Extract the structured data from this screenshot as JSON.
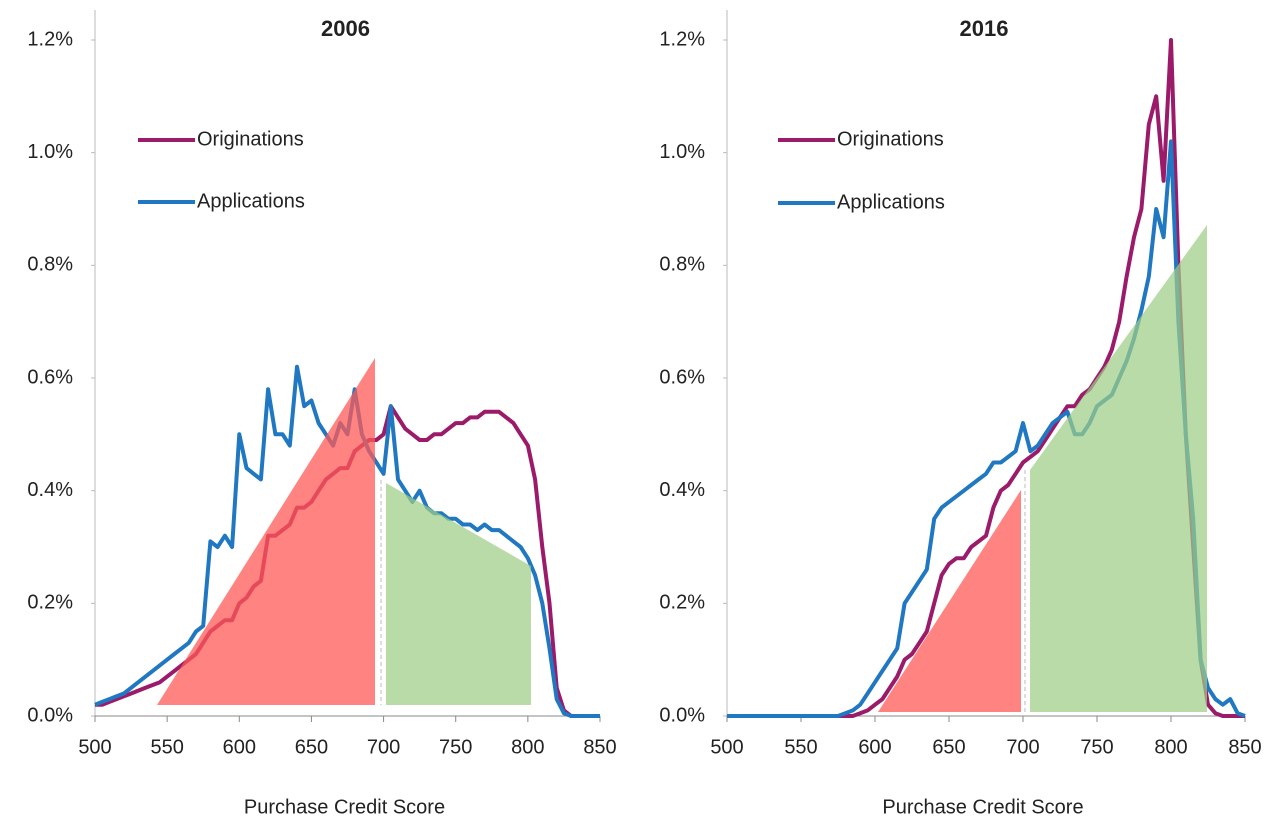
{
  "chart_data": [
    {
      "type": "line",
      "title": "2006",
      "x_label": "Purchase Credit Score",
      "x": [
        500,
        505,
        510,
        515,
        520,
        525,
        530,
        535,
        540,
        545,
        550,
        555,
        560,
        565,
        570,
        575,
        580,
        585,
        590,
        595,
        600,
        605,
        610,
        615,
        620,
        625,
        630,
        635,
        640,
        645,
        650,
        655,
        660,
        665,
        670,
        675,
        680,
        685,
        690,
        695,
        700,
        705,
        710,
        715,
        720,
        725,
        730,
        735,
        740,
        745,
        750,
        755,
        760,
        765,
        770,
        775,
        780,
        785,
        790,
        795,
        800,
        805,
        810,
        815,
        820,
        825,
        830,
        835,
        840,
        845,
        850
      ],
      "series": [
        {
          "name": "Originations",
          "color": "#9b1b6a",
          "values": [
            0.02,
            0.02,
            0.025,
            0.03,
            0.035,
            0.04,
            0.045,
            0.05,
            0.055,
            0.06,
            0.07,
            0.08,
            0.09,
            0.1,
            0.11,
            0.13,
            0.15,
            0.16,
            0.17,
            0.17,
            0.2,
            0.21,
            0.23,
            0.24,
            0.32,
            0.32,
            0.33,
            0.34,
            0.37,
            0.37,
            0.38,
            0.4,
            0.42,
            0.43,
            0.44,
            0.44,
            0.47,
            0.48,
            0.49,
            0.49,
            0.5,
            0.55,
            0.53,
            0.51,
            0.5,
            0.49,
            0.49,
            0.5,
            0.5,
            0.51,
            0.52,
            0.52,
            0.53,
            0.53,
            0.54,
            0.54,
            0.54,
            0.53,
            0.52,
            0.5,
            0.48,
            0.42,
            0.3,
            0.2,
            0.05,
            0.01,
            0,
            0,
            0,
            0,
            0
          ]
        },
        {
          "name": "Applications",
          "color": "#1f78c1",
          "values": [
            0.02,
            0.025,
            0.03,
            0.035,
            0.04,
            0.05,
            0.06,
            0.07,
            0.08,
            0.09,
            0.1,
            0.11,
            0.12,
            0.13,
            0.15,
            0.16,
            0.31,
            0.3,
            0.32,
            0.3,
            0.5,
            0.44,
            0.43,
            0.42,
            0.58,
            0.5,
            0.5,
            0.48,
            0.62,
            0.55,
            0.56,
            0.52,
            0.5,
            0.48,
            0.52,
            0.5,
            0.58,
            0.5,
            0.47,
            0.45,
            0.43,
            0.55,
            0.42,
            0.4,
            0.38,
            0.4,
            0.37,
            0.36,
            0.36,
            0.35,
            0.35,
            0.34,
            0.34,
            0.33,
            0.34,
            0.33,
            0.33,
            0.32,
            0.31,
            0.3,
            0.28,
            0.25,
            0.2,
            0.12,
            0.03,
            0.005,
            0,
            0,
            0,
            0,
            0
          ]
        }
      ],
      "xlim": [
        500,
        850
      ],
      "xticks": [
        500,
        550,
        600,
        650,
        700,
        750,
        800,
        850
      ],
      "ylim": [
        0,
        1.2
      ],
      "yticks": [
        {
          "value": 0,
          "label": "0.0%"
        },
        {
          "value": 0.2,
          "label": "0.2%"
        },
        {
          "value": 0.4,
          "label": "0.4%"
        },
        {
          "value": 0.6,
          "label": "0.6%"
        },
        {
          "value": 0.8,
          "label": "0.8%"
        },
        {
          "value": 1.0,
          "label": "1.0%"
        },
        {
          "value": 1.2,
          "label": "1.2%"
        }
      ]
    },
    {
      "type": "line",
      "title": "2016",
      "x_label": "Purchase Credit Score",
      "x": [
        500,
        505,
        510,
        515,
        520,
        525,
        530,
        535,
        540,
        545,
        550,
        555,
        560,
        565,
        570,
        575,
        580,
        585,
        590,
        595,
        600,
        605,
        610,
        615,
        620,
        625,
        630,
        635,
        640,
        645,
        650,
        655,
        660,
        665,
        670,
        675,
        680,
        685,
        690,
        695,
        700,
        705,
        710,
        715,
        720,
        725,
        730,
        735,
        740,
        745,
        750,
        755,
        760,
        765,
        770,
        775,
        780,
        785,
        790,
        795,
        800,
        805,
        810,
        815,
        820,
        825,
        830,
        835,
        840,
        845,
        850
      ],
      "series": [
        {
          "name": "Originations",
          "color": "#9b1b6a",
          "values": [
            0,
            0,
            0,
            0,
            0,
            0,
            0,
            0,
            0,
            0,
            0,
            0,
            0,
            0,
            0,
            0,
            0,
            0,
            0.005,
            0.01,
            0.02,
            0.03,
            0.05,
            0.07,
            0.1,
            0.11,
            0.13,
            0.15,
            0.2,
            0.25,
            0.27,
            0.28,
            0.28,
            0.3,
            0.31,
            0.32,
            0.37,
            0.4,
            0.41,
            0.43,
            0.45,
            0.46,
            0.47,
            0.49,
            0.51,
            0.53,
            0.55,
            0.55,
            0.57,
            0.58,
            0.6,
            0.62,
            0.65,
            0.7,
            0.78,
            0.85,
            0.9,
            1.05,
            1.1,
            0.95,
            1.2,
            0.8,
            0.5,
            0.3,
            0.1,
            0.02,
            0.005,
            0,
            0,
            0,
            0
          ]
        },
        {
          "name": "Applications",
          "color": "#1f78c1",
          "values": [
            0,
            0,
            0,
            0,
            0,
            0,
            0,
            0,
            0,
            0,
            0,
            0,
            0,
            0,
            0,
            0,
            0.005,
            0.01,
            0.02,
            0.04,
            0.06,
            0.08,
            0.1,
            0.12,
            0.2,
            0.22,
            0.24,
            0.26,
            0.35,
            0.37,
            0.38,
            0.39,
            0.4,
            0.41,
            0.42,
            0.43,
            0.45,
            0.45,
            0.46,
            0.47,
            0.52,
            0.47,
            0.48,
            0.5,
            0.52,
            0.53,
            0.54,
            0.5,
            0.5,
            0.52,
            0.55,
            0.56,
            0.57,
            0.6,
            0.63,
            0.67,
            0.72,
            0.78,
            0.9,
            0.85,
            1.02,
            0.7,
            0.5,
            0.35,
            0.1,
            0.05,
            0.03,
            0.02,
            0.03,
            0.005,
            0
          ]
        }
      ],
      "xlim": [
        500,
        850
      ],
      "xticks": [
        500,
        550,
        600,
        650,
        700,
        750,
        800,
        850
      ],
      "ylim": [
        0,
        1.2
      ],
      "yticks": [
        {
          "value": 0,
          "label": "0.0%"
        },
        {
          "value": 0.2,
          "label": "0.2%"
        },
        {
          "value": 0.4,
          "label": "0.4%"
        },
        {
          "value": 0.6,
          "label": "0.6%"
        },
        {
          "value": 0.8,
          "label": "0.8%"
        },
        {
          "value": 1.0,
          "label": "1.0%"
        },
        {
          "value": 1.2,
          "label": "1.2%"
        }
      ]
    }
  ]
}
